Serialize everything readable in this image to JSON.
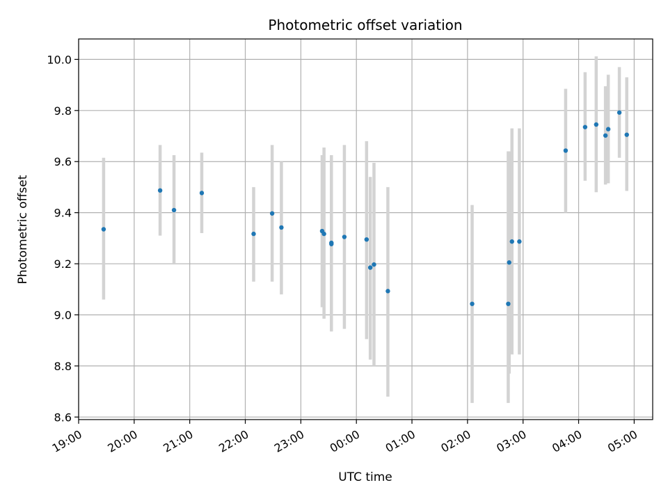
{
  "chart_data": {
    "type": "scatter",
    "title": "Photometric offset variation",
    "xlabel": "UTC time",
    "ylabel": "Photometric offset",
    "x_tick_labels": [
      "19:00",
      "20:00",
      "21:00",
      "22:00",
      "23:00",
      "00:00",
      "01:00",
      "02:00",
      "03:00",
      "04:00",
      "05:00"
    ],
    "xlim": [
      "19:00",
      "05:20"
    ],
    "ylim": [
      8.59,
      10.08
    ],
    "y_ticks": [
      8.6,
      8.8,
      9.0,
      9.2,
      9.4,
      9.6,
      9.8,
      10.0
    ],
    "grid": true,
    "colors": {
      "points": "#1f77b4",
      "errorbars": "#d3d3d3",
      "grid": "#b0b0b0"
    },
    "points": [
      {
        "t": "19:27",
        "y": 9.335,
        "ylow": 9.06,
        "yhigh": 9.615
      },
      {
        "t": "20:28",
        "y": 9.487,
        "ylow": 9.31,
        "yhigh": 9.665
      },
      {
        "t": "20:43",
        "y": 9.41,
        "ylow": 9.2,
        "yhigh": 9.625
      },
      {
        "t": "21:13",
        "y": 9.477,
        "ylow": 9.32,
        "yhigh": 9.635
      },
      {
        "t": "22:09",
        "y": 9.317,
        "ylow": 9.13,
        "yhigh": 9.5
      },
      {
        "t": "22:29",
        "y": 9.397,
        "ylow": 9.13,
        "yhigh": 9.665
      },
      {
        "t": "22:39",
        "y": 9.342,
        "ylow": 9.08,
        "yhigh": 9.6
      },
      {
        "t": "23:23",
        "y": 9.328,
        "ylow": 9.03,
        "yhigh": 9.625
      },
      {
        "t": "23:25",
        "y": 9.317,
        "ylow": 8.985,
        "yhigh": 9.655
      },
      {
        "t": "23:33",
        "y": 9.282,
        "ylow": 8.935,
        "yhigh": 9.625
      },
      {
        "t": "23:33",
        "y": 9.277,
        "ylow": 8.94,
        "yhigh": 9.625
      },
      {
        "t": "23:47",
        "y": 9.305,
        "ylow": 8.945,
        "yhigh": 9.665
      },
      {
        "t": "00:11",
        "y": 9.295,
        "ylow": 8.905,
        "yhigh": 9.68
      },
      {
        "t": "00:15",
        "y": 9.185,
        "ylow": 8.825,
        "yhigh": 9.54
      },
      {
        "t": "00:19",
        "y": 9.197,
        "ylow": 8.8,
        "yhigh": 9.595
      },
      {
        "t": "00:34",
        "y": 9.093,
        "ylow": 8.68,
        "yhigh": 9.5
      },
      {
        "t": "02:05",
        "y": 9.043,
        "ylow": 8.655,
        "yhigh": 9.43
      },
      {
        "t": "02:44",
        "y": 9.043,
        "ylow": 8.655,
        "yhigh": 9.64
      },
      {
        "t": "02:45",
        "y": 9.205,
        "ylow": 8.77,
        "yhigh": 9.64
      },
      {
        "t": "02:48",
        "y": 9.287,
        "ylow": 8.845,
        "yhigh": 9.73
      },
      {
        "t": "02:56",
        "y": 9.287,
        "ylow": 8.845,
        "yhigh": 9.73
      },
      {
        "t": "03:46",
        "y": 9.643,
        "ylow": 9.4,
        "yhigh": 9.885
      },
      {
        "t": "04:07",
        "y": 9.735,
        "ylow": 9.525,
        "yhigh": 9.95
      },
      {
        "t": "04:19",
        "y": 9.745,
        "ylow": 9.48,
        "yhigh": 10.012
      },
      {
        "t": "04:29",
        "y": 9.702,
        "ylow": 9.51,
        "yhigh": 9.895
      },
      {
        "t": "04:32",
        "y": 9.727,
        "ylow": 9.515,
        "yhigh": 9.94
      },
      {
        "t": "04:44",
        "y": 9.792,
        "ylow": 9.615,
        "yhigh": 9.97
      },
      {
        "t": "04:52",
        "y": 9.705,
        "ylow": 9.485,
        "yhigh": 9.93
      }
    ]
  }
}
